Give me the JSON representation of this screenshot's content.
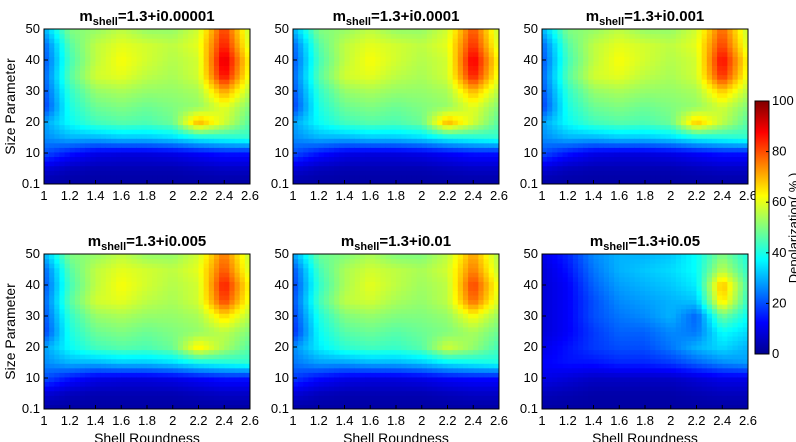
{
  "figure": {
    "colorbar": {
      "label": "Depolarization( % )",
      "ticks": [
        0,
        20,
        40,
        60,
        80,
        100
      ],
      "range": [
        0,
        100
      ],
      "colormap": "jet",
      "colors": [
        "#00008f",
        "#0000ff",
        "#0080ff",
        "#00ffff",
        "#80ff80",
        "#ffff00",
        "#ff8000",
        "#ff0000",
        "#800000"
      ]
    },
    "shared_axes": {
      "xlabel": "Shell Roundness",
      "ylabel": "Size Parameter",
      "x_ticks": [
        "1",
        "1.2",
        "1.4",
        "1.6",
        "1.8",
        "2",
        "2.2",
        "2.4",
        "2.6"
      ],
      "y_ticks": [
        "0.1",
        "10",
        "20",
        "30",
        "40",
        "50"
      ]
    }
  },
  "chart_data": [
    {
      "type": "heatmap",
      "title_prefix": "m",
      "title_sub": "shell",
      "title_suffix": "=1.3+i0.00001",
      "xlabel": "",
      "ylabel": "Size Parameter",
      "x_range": [
        1,
        2.6
      ],
      "y_range": [
        0.1,
        50
      ],
      "x": [
        1.0,
        1.2,
        1.4,
        1.6,
        1.8,
        2.0,
        2.2,
        2.4,
        2.6
      ],
      "y": [
        0.1,
        5,
        10,
        15,
        20,
        25,
        30,
        35,
        40,
        45,
        50
      ],
      "values": [
        [
          2,
          2,
          2,
          2,
          2,
          2,
          2,
          2,
          2
        ],
        [
          8,
          5,
          4,
          4,
          4,
          4,
          5,
          6,
          6
        ],
        [
          20,
          14,
          10,
          9,
          9,
          10,
          12,
          14,
          14
        ],
        [
          26,
          30,
          30,
          32,
          32,
          34,
          38,
          40,
          42
        ],
        [
          28,
          38,
          44,
          46,
          45,
          48,
          70,
          58,
          46
        ],
        [
          18,
          40,
          48,
          50,
          48,
          50,
          52,
          60,
          50
        ],
        [
          20,
          42,
          52,
          54,
          52,
          52,
          54,
          72,
          55
        ],
        [
          22,
          46,
          58,
          60,
          56,
          54,
          58,
          88,
          60
        ],
        [
          20,
          44,
          56,
          62,
          58,
          55,
          58,
          92,
          62
        ],
        [
          22,
          46,
          56,
          60,
          58,
          56,
          60,
          86,
          58
        ],
        [
          30,
          50,
          52,
          56,
          52,
          52,
          58,
          82,
          56
        ]
      ]
    },
    {
      "type": "heatmap",
      "title_prefix": "m",
      "title_sub": "shell",
      "title_suffix": "=1.3+i0.0001",
      "xlabel": "",
      "ylabel": "",
      "x_range": [
        1,
        2.6
      ],
      "y_range": [
        0.1,
        50
      ],
      "x": [
        1.0,
        1.2,
        1.4,
        1.6,
        1.8,
        2.0,
        2.2,
        2.4,
        2.6
      ],
      "y": [
        0.1,
        5,
        10,
        15,
        20,
        25,
        30,
        35,
        40,
        45,
        50
      ],
      "values": [
        [
          2,
          2,
          2,
          2,
          2,
          2,
          2,
          2,
          2
        ],
        [
          8,
          5,
          4,
          4,
          4,
          4,
          5,
          6,
          6
        ],
        [
          20,
          14,
          10,
          9,
          9,
          10,
          12,
          14,
          14
        ],
        [
          26,
          30,
          30,
          32,
          32,
          34,
          38,
          40,
          42
        ],
        [
          28,
          38,
          44,
          46,
          45,
          48,
          70,
          58,
          46
        ],
        [
          18,
          40,
          48,
          50,
          48,
          50,
          52,
          60,
          50
        ],
        [
          20,
          42,
          52,
          54,
          52,
          52,
          54,
          70,
          55
        ],
        [
          22,
          46,
          58,
          60,
          56,
          54,
          58,
          86,
          60
        ],
        [
          20,
          44,
          56,
          62,
          58,
          55,
          58,
          90,
          62
        ],
        [
          22,
          46,
          56,
          60,
          58,
          56,
          60,
          84,
          58
        ],
        [
          30,
          50,
          52,
          56,
          52,
          52,
          58,
          80,
          56
        ]
      ]
    },
    {
      "type": "heatmap",
      "title_prefix": "m",
      "title_sub": "shell",
      "title_suffix": "=1.3+i0.001",
      "xlabel": "",
      "ylabel": "",
      "x_range": [
        1,
        2.6
      ],
      "y_range": [
        0.1,
        50
      ],
      "x": [
        1.0,
        1.2,
        1.4,
        1.6,
        1.8,
        2.0,
        2.2,
        2.4,
        2.6
      ],
      "y": [
        0.1,
        5,
        10,
        15,
        20,
        25,
        30,
        35,
        40,
        45,
        50
      ],
      "values": [
        [
          2,
          2,
          2,
          2,
          2,
          2,
          2,
          2,
          2
        ],
        [
          8,
          5,
          4,
          4,
          4,
          4,
          5,
          6,
          6
        ],
        [
          20,
          14,
          10,
          9,
          9,
          10,
          12,
          14,
          14
        ],
        [
          26,
          30,
          30,
          32,
          32,
          34,
          38,
          40,
          42
        ],
        [
          28,
          38,
          44,
          46,
          45,
          48,
          68,
          56,
          46
        ],
        [
          18,
          40,
          48,
          50,
          48,
          50,
          52,
          58,
          50
        ],
        [
          20,
          42,
          52,
          54,
          52,
          52,
          54,
          68,
          55
        ],
        [
          22,
          46,
          58,
          60,
          56,
          54,
          58,
          84,
          60
        ],
        [
          20,
          44,
          56,
          62,
          58,
          55,
          58,
          88,
          62
        ],
        [
          22,
          46,
          56,
          60,
          58,
          56,
          60,
          82,
          58
        ],
        [
          30,
          50,
          52,
          56,
          52,
          52,
          58,
          78,
          56
        ]
      ]
    },
    {
      "type": "heatmap",
      "title_prefix": "m",
      "title_sub": "shell",
      "title_suffix": "=1.3+i0.005",
      "xlabel": "Shell Roundness",
      "ylabel": "Size Parameter",
      "x_range": [
        1,
        2.6
      ],
      "y_range": [
        0.1,
        50
      ],
      "x": [
        1.0,
        1.2,
        1.4,
        1.6,
        1.8,
        2.0,
        2.2,
        2.4,
        2.6
      ],
      "y": [
        0.1,
        5,
        10,
        15,
        20,
        25,
        30,
        35,
        40,
        45,
        50
      ],
      "values": [
        [
          2,
          2,
          2,
          2,
          2,
          2,
          2,
          2,
          2
        ],
        [
          8,
          5,
          4,
          4,
          4,
          4,
          5,
          6,
          6
        ],
        [
          20,
          14,
          10,
          9,
          9,
          10,
          12,
          14,
          14
        ],
        [
          26,
          30,
          30,
          32,
          32,
          34,
          38,
          40,
          42
        ],
        [
          28,
          38,
          44,
          46,
          45,
          48,
          64,
          54,
          46
        ],
        [
          18,
          40,
          48,
          50,
          48,
          50,
          52,
          56,
          50
        ],
        [
          20,
          42,
          52,
          54,
          52,
          52,
          54,
          66,
          55
        ],
        [
          22,
          46,
          58,
          60,
          56,
          54,
          58,
          82,
          60
        ],
        [
          20,
          44,
          56,
          62,
          58,
          55,
          58,
          86,
          62
        ],
        [
          22,
          46,
          56,
          60,
          58,
          56,
          60,
          80,
          58
        ],
        [
          30,
          50,
          52,
          56,
          52,
          52,
          58,
          76,
          56
        ]
      ]
    },
    {
      "type": "heatmap",
      "title_prefix": "m",
      "title_sub": "shell",
      "title_suffix": "=1.3+i0.01",
      "xlabel": "Shell Roundness",
      "ylabel": "",
      "x_range": [
        1,
        2.6
      ],
      "y_range": [
        0.1,
        50
      ],
      "x": [
        1.0,
        1.2,
        1.4,
        1.6,
        1.8,
        2.0,
        2.2,
        2.4,
        2.6
      ],
      "y": [
        0.1,
        5,
        10,
        15,
        20,
        25,
        30,
        35,
        40,
        45,
        50
      ],
      "values": [
        [
          2,
          2,
          2,
          2,
          2,
          2,
          2,
          2,
          2
        ],
        [
          8,
          5,
          4,
          4,
          4,
          4,
          5,
          6,
          6
        ],
        [
          18,
          13,
          10,
          9,
          9,
          10,
          12,
          13,
          13
        ],
        [
          24,
          28,
          28,
          30,
          30,
          32,
          36,
          38,
          40
        ],
        [
          26,
          36,
          42,
          44,
          43,
          46,
          58,
          52,
          44
        ],
        [
          16,
          38,
          46,
          48,
          46,
          48,
          50,
          54,
          48
        ],
        [
          18,
          40,
          50,
          52,
          50,
          50,
          52,
          62,
          52
        ],
        [
          20,
          44,
          56,
          58,
          54,
          52,
          56,
          78,
          58
        ],
        [
          18,
          42,
          54,
          60,
          56,
          53,
          56,
          82,
          60
        ],
        [
          20,
          44,
          54,
          58,
          56,
          54,
          58,
          76,
          56
        ],
        [
          28,
          48,
          50,
          54,
          50,
          50,
          56,
          72,
          54
        ]
      ]
    },
    {
      "type": "heatmap",
      "title_prefix": "m",
      "title_sub": "shell",
      "title_suffix": "=1.3+i0.05",
      "xlabel": "Shell Roundness",
      "ylabel": "",
      "x_range": [
        1,
        2.6
      ],
      "y_range": [
        0.1,
        50
      ],
      "x": [
        1.0,
        1.2,
        1.4,
        1.6,
        1.8,
        2.0,
        2.2,
        2.4,
        2.6
      ],
      "y": [
        0.1,
        5,
        10,
        15,
        20,
        25,
        30,
        35,
        40,
        45,
        50
      ],
      "values": [
        [
          2,
          2,
          2,
          2,
          2,
          2,
          2,
          2,
          2
        ],
        [
          5,
          4,
          3,
          3,
          3,
          3,
          4,
          5,
          5
        ],
        [
          10,
          8,
          6,
          6,
          6,
          6,
          8,
          10,
          10
        ],
        [
          12,
          14,
          14,
          16,
          16,
          18,
          22,
          26,
          28
        ],
        [
          10,
          14,
          18,
          20,
          20,
          24,
          30,
          34,
          30
        ],
        [
          8,
          12,
          18,
          22,
          22,
          26,
          24,
          38,
          34
        ],
        [
          8,
          12,
          20,
          24,
          26,
          30,
          22,
          48,
          38
        ],
        [
          8,
          12,
          20,
          26,
          28,
          30,
          32,
          66,
          42
        ],
        [
          8,
          12,
          22,
          28,
          30,
          32,
          36,
          70,
          44
        ],
        [
          8,
          14,
          24,
          30,
          32,
          34,
          38,
          56,
          42
        ],
        [
          10,
          16,
          26,
          30,
          30,
          32,
          38,
          50,
          40
        ]
      ]
    }
  ]
}
